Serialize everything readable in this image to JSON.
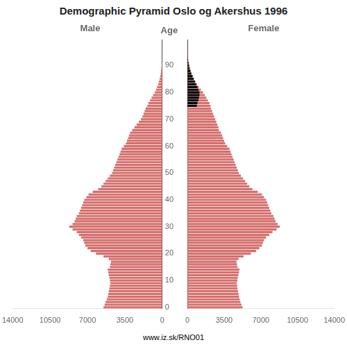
{
  "title": "Demographic Pyramid Oslo og Akershus 1996",
  "annotations": [
    "www.iz.sk/RNO01"
  ],
  "chart_data": [
    {
      "type": "bar",
      "orientation": "horizontal",
      "title": "Male",
      "ylabel": "Age",
      "categories": [
        "0",
        null,
        null,
        null,
        null,
        null,
        null,
        null,
        null,
        null,
        "10",
        null,
        null,
        null,
        null,
        null,
        null,
        null,
        null,
        null,
        "20",
        null,
        null,
        null,
        null,
        null,
        null,
        null,
        null,
        null,
        "30",
        null,
        null,
        null,
        null,
        null,
        null,
        null,
        null,
        null,
        "40",
        null,
        null,
        null,
        null,
        null,
        null,
        null,
        null,
        null,
        "50",
        null,
        null,
        null,
        null,
        null,
        null,
        null,
        null,
        null,
        "60",
        null,
        null,
        null,
        null,
        null,
        null,
        null,
        null,
        null,
        "70",
        null,
        null,
        null,
        null,
        null,
        null,
        null,
        null,
        null,
        "80",
        null,
        null,
        null,
        null,
        null,
        null,
        null,
        null,
        null,
        "90",
        null,
        null,
        null,
        null,
        null,
        null,
        null,
        null,
        null
      ],
      "series": [
        {
          "color": "#d4706e",
          "values": [
            5500,
            5400,
            5300,
            5200,
            5100,
            5050,
            5000,
            4950,
            4900,
            4850,
            4900,
            4950,
            5000,
            5050,
            5100,
            4900,
            4850,
            4800,
            5000,
            5500,
            6200,
            6700,
            7000,
            7200,
            7300,
            7400,
            7600,
            7800,
            8000,
            8400,
            8700,
            8400,
            8200,
            8100,
            8000,
            7800,
            7700,
            7600,
            7500,
            7400,
            7300,
            7100,
            6900,
            6500,
            6000,
            5700,
            5500,
            5300,
            5100,
            4900,
            4700,
            4600,
            4500,
            4400,
            4300,
            4200,
            4100,
            4000,
            3900,
            3800,
            3600,
            3400,
            3300,
            3200,
            3100,
            3000,
            2800,
            2600,
            2400,
            2200,
            2000,
            1850,
            1750,
            1650,
            1550,
            1400,
            1300,
            1150,
            1000,
            850,
            700,
            580,
            480,
            380,
            310,
            250,
            190,
            145,
            105,
            75,
            52,
            35,
            22,
            14,
            9,
            6,
            4,
            2,
            1,
            1
          ]
        },
        {
          "color": "#000000",
          "values": [
            0,
            0,
            0,
            0,
            0,
            0,
            0,
            0,
            0,
            0,
            0,
            0,
            0,
            0,
            0,
            0,
            0,
            0,
            0,
            0,
            0,
            0,
            0,
            0,
            0,
            0,
            0,
            0,
            0,
            0,
            0,
            0,
            0,
            0,
            0,
            0,
            0,
            0,
            0,
            0,
            0,
            0,
            0,
            0,
            0,
            0,
            0,
            0,
            0,
            0,
            0,
            0,
            0,
            0,
            0,
            0,
            0,
            0,
            0,
            0,
            0,
            0,
            0,
            0,
            0,
            0,
            0,
            0,
            0,
            0,
            0,
            0,
            0,
            0,
            0,
            0,
            0,
            0,
            0,
            0,
            0,
            0,
            0,
            0,
            0,
            0,
            0,
            0,
            0,
            0,
            0,
            0,
            0,
            0,
            0,
            0,
            0,
            0,
            0,
            0
          ]
        }
      ],
      "xlim": [
        14000,
        0
      ],
      "xticks": [
        14000,
        10500,
        7000,
        3500,
        0
      ],
      "grid": false
    },
    {
      "type": "bar",
      "orientation": "horizontal",
      "title": "Female",
      "tick_labels": "x",
      "categories": [
        "0",
        null,
        null,
        null,
        null,
        null,
        null,
        null,
        null,
        null,
        "10",
        null,
        null,
        null,
        null,
        null,
        null,
        null,
        null,
        null,
        "20",
        null,
        null,
        null,
        null,
        null,
        null,
        null,
        null,
        null,
        "30",
        null,
        null,
        null,
        null,
        null,
        null,
        null,
        null,
        null,
        "40",
        null,
        null,
        null,
        null,
        null,
        null,
        null,
        null,
        null,
        "50",
        null,
        null,
        null,
        null,
        null,
        null,
        null,
        null,
        null,
        "60",
        null,
        null,
        null,
        null,
        null,
        null,
        null,
        null,
        null,
        "70",
        null,
        null,
        null,
        null,
        null,
        null,
        null,
        null,
        null,
        "80",
        null,
        null,
        null,
        null,
        null,
        null,
        null,
        null,
        null,
        "90",
        null,
        null,
        null,
        null,
        null,
        null,
        null,
        null,
        null
      ],
      "series": [
        {
          "color": "#d4706e",
          "values": [
            5250,
            5150,
            5050,
            4980,
            4920,
            4870,
            4820,
            4780,
            4740,
            4700,
            4760,
            4810,
            4860,
            4910,
            4960,
            4780,
            4730,
            4680,
            4870,
            5350,
            6050,
            6550,
            6850,
            7100,
            7200,
            7300,
            7500,
            7800,
            8100,
            8500,
            8800,
            8600,
            8400,
            8300,
            8200,
            8000,
            7900,
            7800,
            7700,
            7600,
            7500,
            7300,
            7100,
            6700,
            6200,
            5900,
            5700,
            5500,
            5300,
            5100,
            4900,
            4800,
            4700,
            4600,
            4500,
            4400,
            4300,
            4200,
            4100,
            4000,
            3800,
            3600,
            3500,
            3400,
            3300,
            3200,
            3000,
            2950,
            2850,
            2750,
            2650,
            2550,
            2450,
            2350,
            2250,
            2200,
            2100,
            1950,
            1800,
            1650,
            1480,
            1280,
            1080,
            900,
            760,
            620,
            500,
            390,
            300,
            225,
            170,
            115,
            78,
            52,
            36,
            26,
            18,
            12,
            8,
            5
          ]
        },
        {
          "color": "#000000",
          "values": [
            0,
            0,
            0,
            0,
            0,
            0,
            0,
            0,
            0,
            0,
            0,
            0,
            0,
            0,
            0,
            0,
            0,
            0,
            0,
            0,
            0,
            0,
            0,
            0,
            0,
            0,
            0,
            0,
            0,
            0,
            0,
            0,
            0,
            0,
            0,
            0,
            0,
            0,
            0,
            0,
            0,
            0,
            0,
            0,
            0,
            0,
            0,
            0,
            0,
            0,
            0,
            0,
            0,
            0,
            0,
            0,
            0,
            0,
            0,
            0,
            0,
            0,
            0,
            0,
            0,
            0,
            0,
            0,
            0,
            0,
            0,
            0,
            0,
            0,
            0,
            900,
            950,
            1050,
            1100,
            1150,
            1150,
            1050,
            950,
            830,
            720,
            600,
            490,
            380,
            285,
            210,
            155,
            100,
            65,
            42,
            28,
            18,
            12,
            8,
            5,
            3
          ]
        }
      ],
      "xlim": [
        0,
        14000
      ],
      "xticks": [
        0,
        3500,
        7000,
        10500,
        14000
      ],
      "grid": false
    }
  ]
}
